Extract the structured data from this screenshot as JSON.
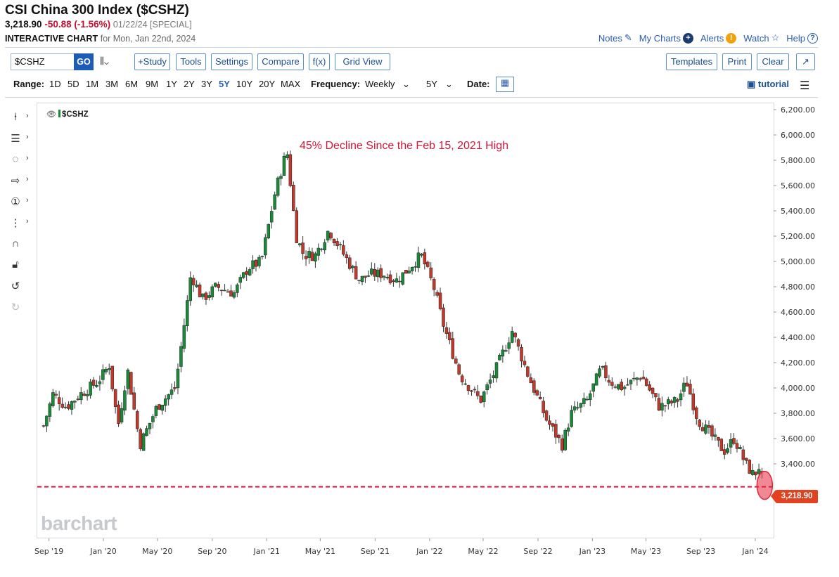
{
  "header": {
    "title": "CSI China 300 Index ($CSHZ)",
    "last": "3,218.90",
    "change": "-50.88 (-1.56%)",
    "meta": "01/22/24 [SPECIAL]",
    "chart_label": "INTERACTIVE CHART",
    "for_date": "for Mon, Jan 22nd, 2024"
  },
  "toplinks": [
    "Notes",
    "My Charts",
    "Alerts",
    "Watch",
    "Help"
  ],
  "toolbar": {
    "symbol": "$CSHZ",
    "go": "GO",
    "chart_type_glyph": "⫼⌄",
    "study": "+Study",
    "tools": "Tools",
    "settings": "Settings",
    "compare": "Compare",
    "fx": "f(x)",
    "grid_view": "Grid View",
    "templates": "Templates",
    "print": "Print",
    "clear": "Clear",
    "expand": "↗"
  },
  "rangebar": {
    "range_label": "Range:",
    "ranges": [
      "1D",
      "5D",
      "1M",
      "3M",
      "6M",
      "9M",
      "1Y",
      "2Y",
      "3Y",
      "5Y",
      "10Y",
      "20Y",
      "MAX"
    ],
    "active_range": "5Y",
    "frequency_label": "Frequency:",
    "frequency": "Weekly",
    "period": "5Y",
    "date_label": "Date:",
    "tutorial": "tutorial"
  },
  "side_tool_icons": [
    "crosshair-icon",
    "lines-icon",
    "shapes-icon",
    "arrow-icon",
    "number-icon",
    "fib-icon",
    "magnet-icon",
    "lock-icon",
    "undo-icon",
    "redo-icon"
  ],
  "chart": {
    "series_name": "$CSHZ",
    "annotation": "45% Decline Since the Feb 15, 2021 High",
    "price_tag": "3,218.90",
    "logo": "barchart",
    "colors": {
      "up": "#1a8a3a",
      "down": "#c0392b",
      "annotation": "#d6173a",
      "price_line": "#d6173a"
    }
  },
  "chart_data": {
    "type": "candlestick",
    "frequency": "weekly",
    "ylim": [
      3000,
      6200
    ],
    "yticks": [
      "6,200.00",
      "6,000.00",
      "5,800.00",
      "5,600.00",
      "5,400.00",
      "5,200.00",
      "5,000.00",
      "4,800.00",
      "4,600.00",
      "4,400.00",
      "4,200.00",
      "4,000.00",
      "3,800.00",
      "3,600.00",
      "3,400.00"
    ],
    "xticks": [
      "Sep '19",
      "Jan '20",
      "May '20",
      "Sep '20",
      "Jan '21",
      "May '21",
      "Sep '21",
      "Jan '22",
      "May '22",
      "Sep '22",
      "Jan '23",
      "May '23",
      "Sep '23",
      "Jan '24"
    ],
    "last_close": 3218.9,
    "reference_line": 3218.9,
    "close_path": [
      {
        "date": "2019-08-20",
        "close": 3700
      },
      {
        "date": "2019-09-10",
        "close": 3950
      },
      {
        "date": "2019-10-10",
        "close": 3850
      },
      {
        "date": "2019-11-10",
        "close": 3950
      },
      {
        "date": "2019-12-20",
        "close": 4050
      },
      {
        "date": "2020-01-14",
        "close": 4180
      },
      {
        "date": "2020-02-03",
        "close": 3700
      },
      {
        "date": "2020-02-24",
        "close": 4150
      },
      {
        "date": "2020-03-23",
        "close": 3550
      },
      {
        "date": "2020-04-30",
        "close": 3850
      },
      {
        "date": "2020-06-10",
        "close": 4000
      },
      {
        "date": "2020-07-06",
        "close": 4650
      },
      {
        "date": "2020-07-15",
        "close": 4900
      },
      {
        "date": "2020-08-10",
        "close": 4700
      },
      {
        "date": "2020-09-10",
        "close": 4800
      },
      {
        "date": "2020-10-20",
        "close": 4750
      },
      {
        "date": "2020-11-20",
        "close": 4950
      },
      {
        "date": "2020-12-20",
        "close": 5000
      },
      {
        "date": "2021-01-20",
        "close": 5550
      },
      {
        "date": "2021-02-15",
        "close": 5880
      },
      {
        "date": "2021-03-08",
        "close": 5200
      },
      {
        "date": "2021-03-25",
        "close": 5050
      },
      {
        "date": "2021-04-20",
        "close": 5050
      },
      {
        "date": "2021-05-20",
        "close": 5250
      },
      {
        "date": "2021-06-15",
        "close": 5100
      },
      {
        "date": "2021-07-28",
        "close": 4850
      },
      {
        "date": "2021-08-20",
        "close": 4900
      },
      {
        "date": "2021-09-20",
        "close": 4900
      },
      {
        "date": "2021-10-20",
        "close": 4850
      },
      {
        "date": "2021-12-13",
        "close": 5050
      },
      {
        "date": "2022-01-10",
        "close": 4800
      },
      {
        "date": "2022-02-01",
        "close": 4500
      },
      {
        "date": "2022-03-10",
        "close": 4100
      },
      {
        "date": "2022-04-25",
        "close": 3900
      },
      {
        "date": "2022-05-30",
        "close": 4150
      },
      {
        "date": "2022-07-05",
        "close": 4450
      },
      {
        "date": "2022-08-10",
        "close": 4100
      },
      {
        "date": "2022-09-20",
        "close": 3750
      },
      {
        "date": "2022-10-25",
        "close": 3550
      },
      {
        "date": "2022-11-15",
        "close": 3800
      },
      {
        "date": "2022-12-20",
        "close": 3900
      },
      {
        "date": "2023-01-20",
        "close": 4150
      },
      {
        "date": "2023-02-10",
        "close": 4050
      },
      {
        "date": "2023-03-10",
        "close": 4000
      },
      {
        "date": "2023-04-20",
        "close": 4100
      },
      {
        "date": "2023-05-31",
        "close": 3850
      },
      {
        "date": "2023-07-10",
        "close": 3900
      },
      {
        "date": "2023-07-31",
        "close": 4050
      },
      {
        "date": "2023-08-25",
        "close": 3750
      },
      {
        "date": "2023-10-23",
        "close": 3500
      },
      {
        "date": "2023-11-15",
        "close": 3600
      },
      {
        "date": "2023-12-10",
        "close": 3400
      },
      {
        "date": "2023-12-30",
        "close": 3300
      },
      {
        "date": "2024-01-08",
        "close": 3390
      },
      {
        "date": "2024-01-22",
        "close": 3218.9
      }
    ]
  }
}
